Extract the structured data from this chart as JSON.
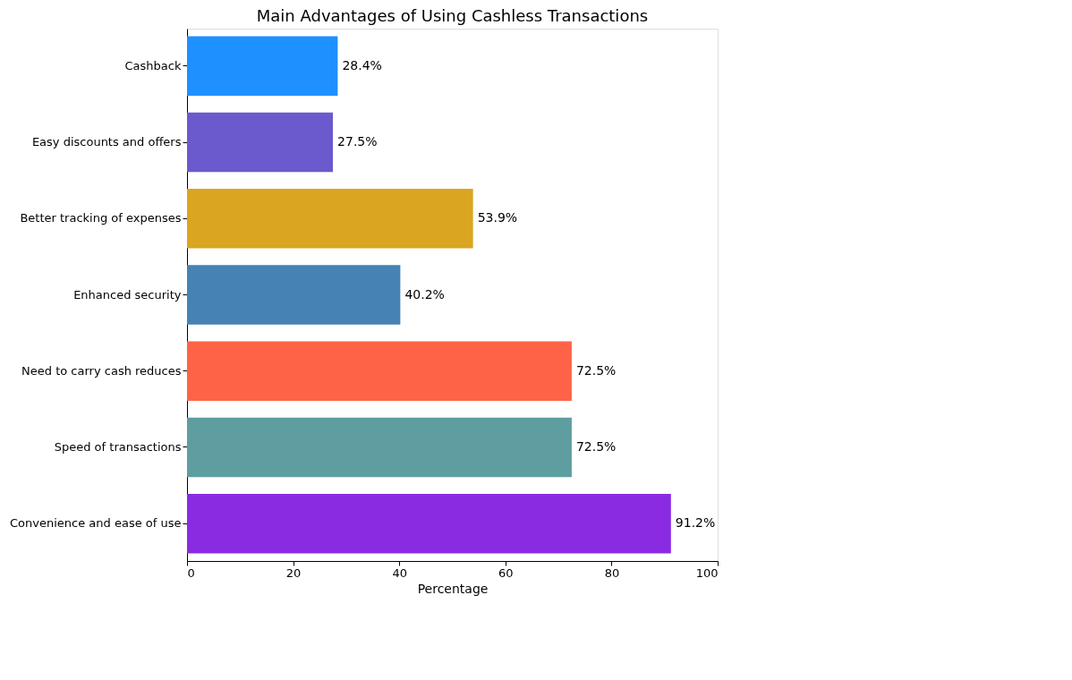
{
  "chart_data": {
    "type": "bar",
    "orientation": "horizontal",
    "title": "Main Advantages of Using Cashless Transactions",
    "xlabel": "Percentage",
    "categories": [
      "Cashback",
      "Easy discounts and offers",
      "Better tracking of expenses",
      "Enhanced security",
      "Need to carry cash reduces",
      "Speed of transactions",
      "Convenience and ease of use"
    ],
    "values": [
      28.4,
      27.5,
      53.9,
      40.2,
      72.5,
      72.5,
      91.2
    ],
    "colors": [
      "#1e90ff",
      "#6a5acd",
      "#daa520",
      "#4682b4",
      "#ff6347",
      "#5f9ea0",
      "#8a2be2"
    ],
    "value_labels": [
      "28.4%",
      "27.5%",
      "53.9%",
      "40.2%",
      "72.5%",
      "72.5%",
      "91.2%"
    ],
    "xlim": [
      0,
      100
    ],
    "xticks": [
      0,
      20,
      40,
      60,
      80,
      100
    ],
    "grid": false
  }
}
